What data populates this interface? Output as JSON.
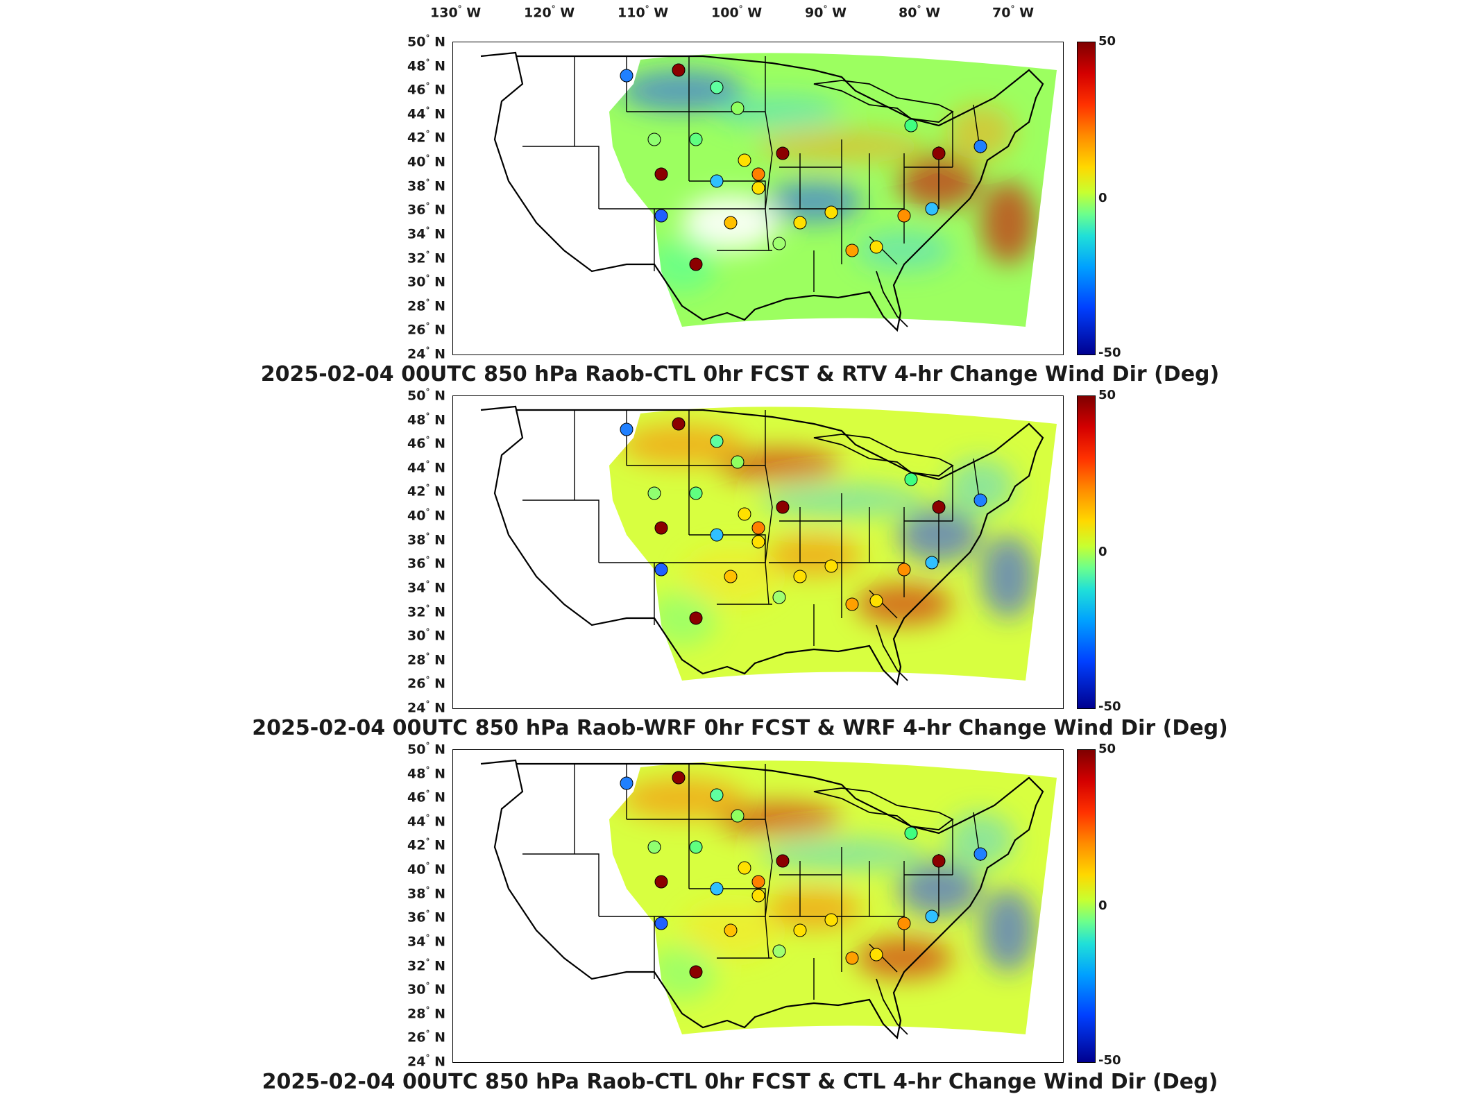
{
  "longitude_labels": [
    "130",
    "120",
    "110",
    "100",
    "90",
    "80",
    "70"
  ],
  "longitude_suffix": "W",
  "latitude_labels": [
    "50",
    "48",
    "46",
    "44",
    "42",
    "40",
    "38",
    "36",
    "34",
    "32",
    "30",
    "28",
    "26",
    "24"
  ],
  "latitude_suffix": "N",
  "degree_symbol": "°",
  "colorbar": {
    "max_label": "50",
    "mid_label": "0",
    "min_label": "-50",
    "colormap": [
      "#00008f",
      "#0040ff",
      "#00a0ff",
      "#20e0d8",
      "#6cff8c",
      "#ffd800",
      "#ff8c00",
      "#ff3200",
      "#7f0000"
    ]
  },
  "panels": [
    {
      "title": "2025-02-04 00UTC 850 hPa Raob-CTL 0hr FCST & RTV 4-hr Change Wind Dir (Deg)"
    },
    {
      "title": "2025-02-04 00UTC 850 hPa Raob-WRF 0hr FCST & WRF 4-hr Change Wind Dir (Deg)"
    },
    {
      "title": "2025-02-04 00UTC 850 hPa Raob-CTL 0hr FCST & CTL 4-hr Change Wind Dir (Deg)"
    }
  ]
}
